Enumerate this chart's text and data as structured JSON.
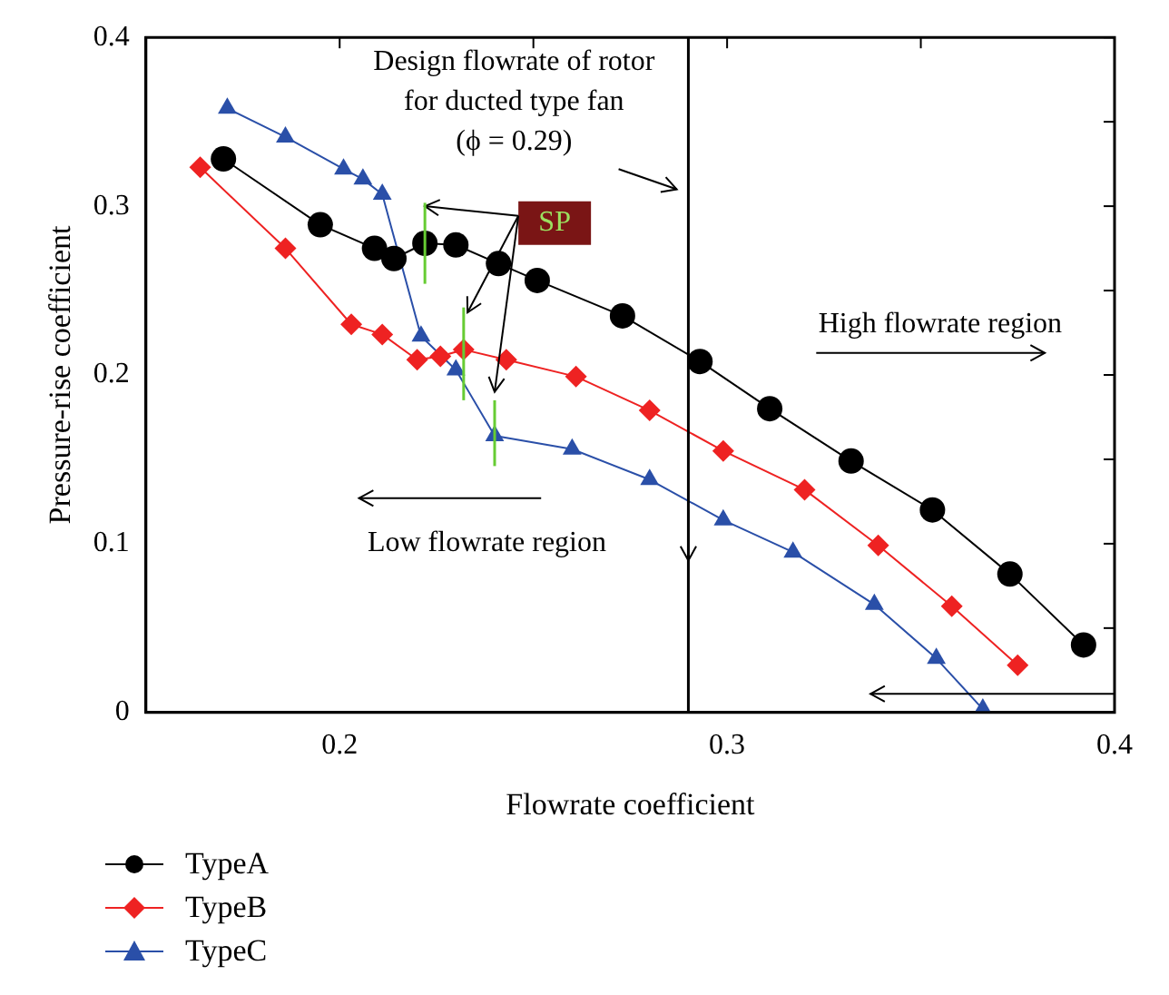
{
  "chart_data": {
    "type": "line",
    "xlabel": "Flowrate coefficient",
    "ylabel": "Pressure-rise coefficient",
    "xlim": [
      0.15,
      0.4
    ],
    "xticks": [
      0.2,
      {
        "value": 0.25,
        "label": null
      },
      0.3,
      {
        "value": 0.35,
        "label": null
      },
      0.4
    ],
    "ylim": [
      0,
      0.4
    ],
    "yticks": [
      0,
      {
        "value": 0.05,
        "label": null
      },
      0.1,
      {
        "value": 0.15,
        "label": null
      },
      0.2,
      {
        "value": 0.25,
        "label": null
      },
      0.3,
      {
        "value": 0.35,
        "label": null
      },
      0.4
    ],
    "grid": false,
    "legend": "bottom left",
    "series": [
      {
        "name": "TypeA",
        "color": "#000000",
        "marker": "circle",
        "x": [
          0.17,
          0.195,
          0.209,
          0.214,
          0.222,
          0.23,
          0.241,
          0.251,
          0.273,
          0.293,
          0.311,
          0.332,
          0.353,
          0.373,
          0.392
        ],
        "values": [
          0.328,
          0.289,
          0.275,
          0.269,
          0.278,
          0.277,
          0.266,
          0.256,
          0.235,
          0.208,
          0.18,
          0.149,
          0.12,
          0.082,
          0.04
        ]
      },
      {
        "name": "TypeB",
        "color": "#ee2222",
        "marker": "diamond",
        "x": [
          0.164,
          0.186,
          0.203,
          0.211,
          0.22,
          0.226,
          0.232,
          0.243,
          0.261,
          0.28,
          0.299,
          0.32,
          0.339,
          0.358,
          0.375
        ],
        "values": [
          0.323,
          0.275,
          0.23,
          0.224,
          0.209,
          0.211,
          0.215,
          0.209,
          0.199,
          0.179,
          0.155,
          0.132,
          0.099,
          0.063,
          0.028
        ]
      },
      {
        "name": "TypeC",
        "color": "#2a4fa8",
        "marker": "triangle",
        "x": [
          0.171,
          0.186,
          0.201,
          0.206,
          0.211,
          0.221,
          0.23,
          0.24,
          0.26,
          0.28,
          0.299,
          0.317,
          0.338,
          0.354,
          0.366
        ],
        "values": [
          0.358,
          0.341,
          0.322,
          0.316,
          0.307,
          0.223,
          0.203,
          0.164,
          0.156,
          0.138,
          0.114,
          0.095,
          0.064,
          0.032,
          0.002
        ]
      }
    ],
    "ref_lines": [
      {
        "axis": "x",
        "value": 0.29,
        "label": "Design flowrate of rotor\nfor ducted type fan\n(ϕ = 0.29)",
        "color": "#000000"
      }
    ],
    "annotations": [
      "SP",
      "High flowrate region",
      "Low flowrate region"
    ]
  }
}
